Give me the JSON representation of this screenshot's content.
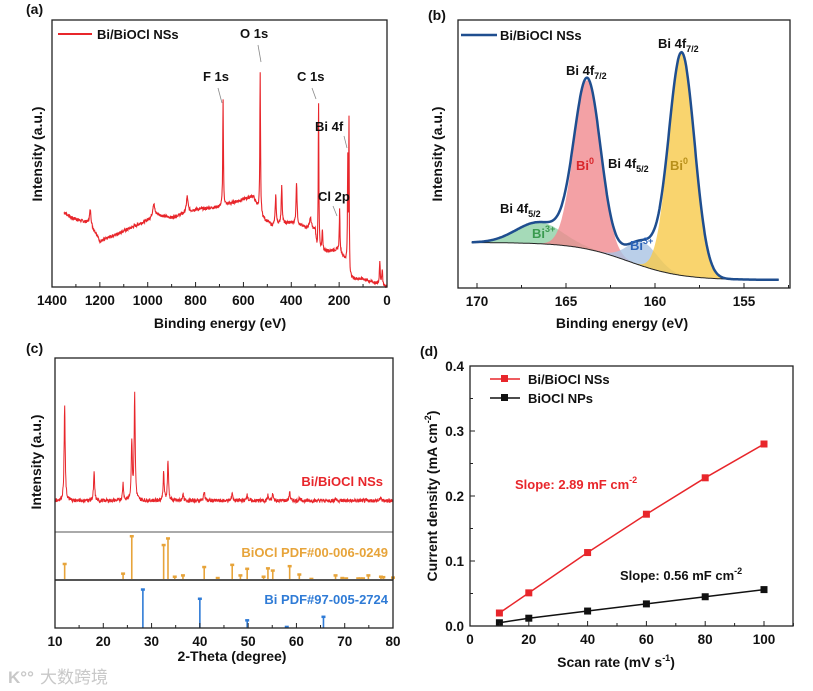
{
  "watermark": "大数跨境",
  "chart_data": [
    {
      "panel": "(a)",
      "type": "line",
      "title": "",
      "xlabel": "Binding energy (eV)",
      "ylabel": "Intensity (a.u.)",
      "xlim": [
        1400,
        0
      ],
      "xticks": [
        "1400",
        "1200",
        "1000",
        "800",
        "600",
        "400",
        "200",
        "0"
      ],
      "ylim": [
        0,
        100
      ],
      "legend": {
        "label": "Bi/BiOCl NSs",
        "placement": "top-left"
      },
      "color": "#e8262b",
      "baseline": [
        [
          1350,
          28
        ],
        [
          1320,
          26
        ],
        [
          1250,
          24
        ],
        [
          1215,
          20
        ],
        [
          1200,
          17
        ],
        [
          1100,
          21
        ],
        [
          1000,
          25
        ],
        [
          960,
          27
        ],
        [
          900,
          26
        ],
        [
          800,
          29
        ],
        [
          700,
          30
        ],
        [
          560,
          34
        ],
        [
          540,
          30
        ],
        [
          520,
          26
        ],
        [
          480,
          23
        ],
        [
          400,
          24
        ],
        [
          300,
          21
        ],
        [
          292,
          13
        ],
        [
          200,
          14
        ],
        [
          168,
          9
        ],
        [
          160,
          3
        ],
        [
          100,
          3
        ],
        [
          0,
          0
        ]
      ],
      "peaks": [
        [
          1240,
          6,
          4
        ],
        [
          975,
          5,
          5
        ],
        [
          835,
          6,
          4
        ],
        [
          685,
          40,
          1.6
        ],
        [
          530,
          52,
          1.6
        ],
        [
          465,
          11,
          2.5
        ],
        [
          440,
          14,
          2.5
        ],
        [
          378,
          16,
          2.5
        ],
        [
          320,
          4,
          5
        ],
        [
          286,
          56,
          1.6
        ],
        [
          270,
          8,
          2
        ],
        [
          198,
          15,
          1.6
        ],
        [
          164,
          40,
          1.4
        ],
        [
          159,
          58,
          1.4
        ],
        [
          30,
          9,
          2
        ],
        [
          20,
          6,
          2
        ]
      ],
      "annotations": [
        {
          "label": "O 1s",
          "x": 530
        },
        {
          "label": "F 1s",
          "x": 685
        },
        {
          "label": "C 1s",
          "x": 286
        },
        {
          "label": "Bi 4f",
          "x": 159
        },
        {
          "label": "Cl 2p",
          "x": 198
        }
      ]
    },
    {
      "panel": "(b)",
      "type": "area",
      "xlabel": "Binding energy (eV)",
      "ylabel": "Intensity (a.u.)",
      "xlim": [
        171,
        152.5
      ],
      "xticks": [
        "170",
        "165",
        "160",
        "155"
      ],
      "ylim": [
        0,
        100
      ],
      "legend": {
        "label": "Bi/BiOCl NSs",
        "placement": "top-left"
      },
      "envelope_color": "#1f4e8f",
      "background": {
        "low": 3,
        "high": 17,
        "center": 161.5,
        "width": 1.5
      },
      "components": [
        {
          "name": "Bi3+ 4f5/2",
          "center": 166.5,
          "height": 8,
          "sigma": 1.3,
          "color": "#8fd1a6"
        },
        {
          "name": "Bi0 4f5/2",
          "center": 163.8,
          "height": 63,
          "sigma": 0.75,
          "color": "#f08a8e"
        },
        {
          "name": "Bi3+ 4f7/2",
          "center": 160.7,
          "height": 9,
          "sigma": 0.85,
          "color": "#a9c3e3"
        },
        {
          "name": "Bi0 4f7/2",
          "center": 158.5,
          "height": 83,
          "sigma": 0.72,
          "color": "#f7c94a"
        }
      ],
      "labels": {
        "peak1_main": "Bi 4f",
        "peak1_sub": "7/2",
        "peak2_main": "Bi 4f",
        "peak2_sub": "7/2",
        "peak3_main": "Bi 4f",
        "peak3_sub": "5/2",
        "peak4_main": "Bi 4f",
        "peak4_sub": "5/2",
        "bi0_main": "Bi",
        "bi0_sup": "0",
        "bi3_main": "Bi",
        "bi3_sup": "3+"
      },
      "label_colors": {
        "red": "#d9262b",
        "yellow": "#b8901a",
        "green": "#3a9a4f",
        "blue": "#2b63b8"
      }
    },
    {
      "panel": "(c)",
      "type": "line",
      "xlabel": "2-Theta (degree)",
      "ylabel": "Intensity (a.u.)",
      "xlim": [
        10,
        80
      ],
      "xticks": [
        "10",
        "20",
        "30",
        "40",
        "50",
        "60",
        "70",
        "80"
      ],
      "sample": {
        "label": "Bi/BiOCl NSs",
        "color": "#e8262b",
        "baseline": 18,
        "peaks": [
          [
            12.0,
            55
          ],
          [
            18.1,
            16
          ],
          [
            24.1,
            10
          ],
          [
            25.9,
            34
          ],
          [
            26.5,
            60
          ],
          [
            32.5,
            16
          ],
          [
            33.4,
            23
          ],
          [
            36.5,
            4
          ],
          [
            40.9,
            6
          ],
          [
            46.7,
            5
          ],
          [
            49.8,
            4
          ],
          [
            54.1,
            3
          ],
          [
            55.1,
            4
          ],
          [
            58.6,
            5
          ],
          [
            60.6,
            1.5
          ],
          [
            68.1,
            1.5
          ],
          [
            77.4,
            2
          ]
        ]
      },
      "references": [
        {
          "label": "BiOCl PDF#00-006-0249",
          "color": "#e7a43a",
          "sticks": [
            [
              12.0,
              37
            ],
            [
              24.1,
              15
            ],
            [
              25.9,
              100
            ],
            [
              32.5,
              80
            ],
            [
              33.4,
              95
            ],
            [
              34.8,
              8
            ],
            [
              36.5,
              11
            ],
            [
              40.9,
              30
            ],
            [
              43.7,
              5
            ],
            [
              46.7,
              35
            ],
            [
              48.4,
              11
            ],
            [
              49.8,
              26
            ],
            [
              53.2,
              8
            ],
            [
              54.1,
              27
            ],
            [
              55.1,
              22
            ],
            [
              58.6,
              32
            ],
            [
              60.6,
              13
            ],
            [
              63.1,
              3
            ],
            [
              68.1,
              11
            ],
            [
              69.5,
              5
            ],
            [
              70.3,
              4
            ],
            [
              72.8,
              4
            ],
            [
              73.3,
              4
            ],
            [
              73.8,
              4
            ],
            [
              74.9,
              11
            ],
            [
              77.5,
              8
            ],
            [
              78.0,
              7
            ],
            [
              80.0,
              6
            ]
          ]
        },
        {
          "label": "Bi PDF#97-005-2724",
          "color": "#2f7bd6",
          "sticks": [
            [
              28.2,
              88
            ],
            [
              40.0,
              67
            ],
            [
              49.8,
              18
            ],
            [
              58.0,
              3
            ],
            [
              65.6,
              26
            ]
          ]
        }
      ]
    },
    {
      "panel": "(d)",
      "type": "scatter",
      "xlabel_main": "Scan rate (mV s",
      "xlabel_sup": "-1",
      "xlabel_end": ")",
      "ylabel_main": "Current density (mA cm",
      "ylabel_sup": "-2",
      "ylabel_end": ")",
      "xlim": [
        0,
        110
      ],
      "ylim": [
        0,
        0.4
      ],
      "xticks": [
        "0",
        "20",
        "40",
        "60",
        "80",
        "100"
      ],
      "yticks": [
        "0.0",
        "0.1",
        "0.2",
        "0.3",
        "0.4"
      ],
      "legend_placement": "top-left",
      "x": [
        10,
        20,
        40,
        60,
        80,
        100
      ],
      "series": [
        {
          "name": "Bi/BiOCl NSs",
          "color": "#e8262b",
          "values": [
            0.02,
            0.051,
            0.113,
            0.172,
            0.228,
            0.28
          ],
          "slope_main": "Slope: 2.89 mF cm",
          "slope_sup": "-2"
        },
        {
          "name": "BiOCl NPs",
          "color": "#111111",
          "values": [
            0.005,
            0.012,
            0.023,
            0.034,
            0.045,
            0.056
          ],
          "slope_main": "Slope: 0.56 mF cm",
          "slope_sup": "-2"
        }
      ]
    }
  ]
}
